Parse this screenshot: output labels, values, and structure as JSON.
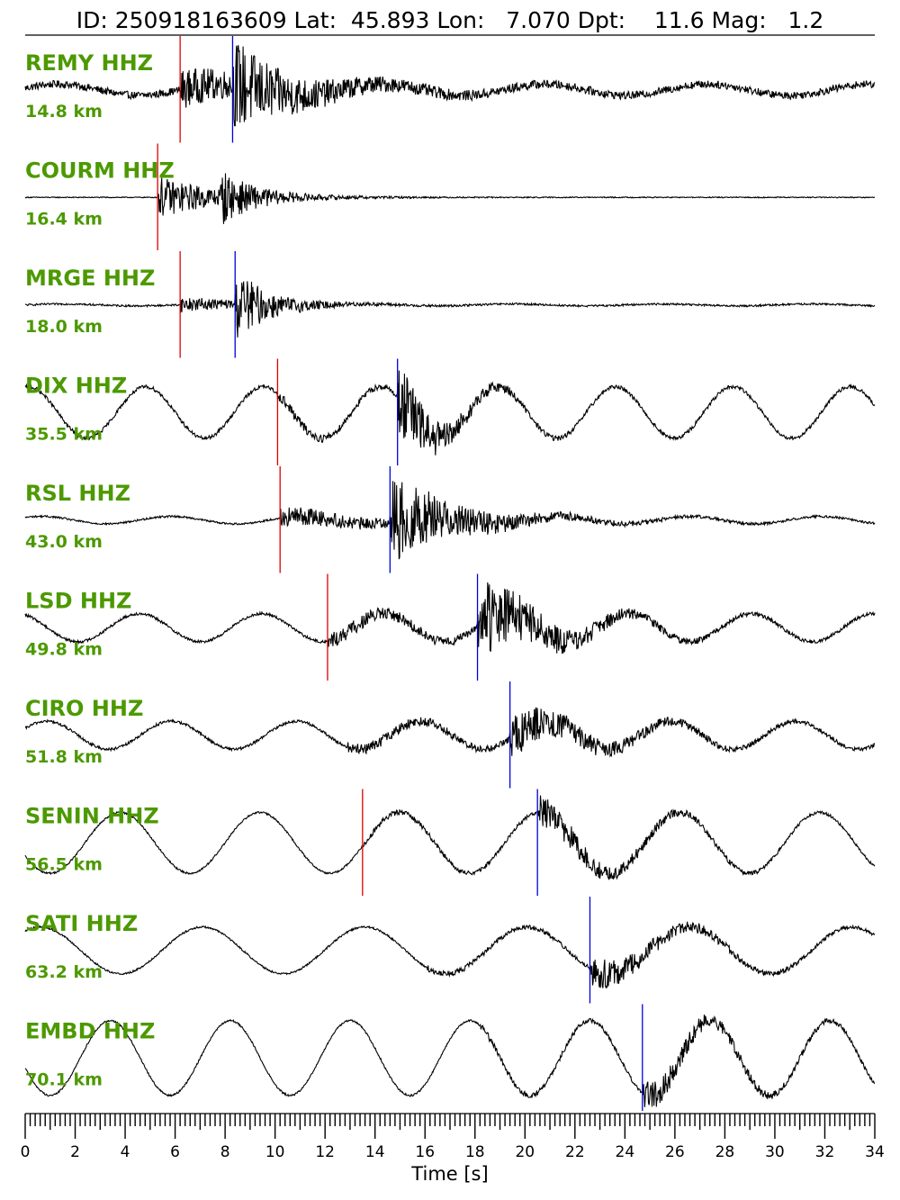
{
  "title": "ID: 250918163609 Lat:  45.893 Lon:   7.070 Dpt:    11.6 Mag:   1.2",
  "chart_data": {
    "type": "line",
    "title": "ID: 250918163609 Lat:  45.893 Lon:   7.070 Dpt:    11.6 Mag:   1.2",
    "xlabel": "Time [s]",
    "xlim": [
      0,
      34
    ],
    "xticks": [
      0,
      2,
      4,
      6,
      8,
      10,
      12,
      14,
      16,
      18,
      20,
      22,
      24,
      26,
      28,
      30,
      32,
      34
    ],
    "minor_tick_step": 0.2,
    "line_color": "#000000",
    "label_color": "#4c9900",
    "p_pick_color": "#dd0000",
    "s_pick_color": "#0000dd",
    "traces": [
      {
        "station": "REMY HHZ",
        "distance": "14.8 km",
        "p_pick": 6.2,
        "s_pick": 8.3,
        "noise_amp": 0.08,
        "p_amp": 0.35,
        "s_amp": 0.55,
        "peak_amp": 0.75,
        "coda_decay": 2.0,
        "long_period_amp": 0.12,
        "long_period_s": 6.5,
        "phase": 0.3
      },
      {
        "station": "COURM HHZ",
        "distance": "16.4 km",
        "p_pick": 5.3,
        "s_pick": null,
        "noise_amp": 0.01,
        "p_amp": 0.45,
        "s_amp": 0.3,
        "peak_amp": 0.45,
        "coda_decay": 1.2,
        "long_period_amp": 0.0,
        "long_period_s": 6.0,
        "phase": 0.0
      },
      {
        "station": "MRGE HHZ",
        "distance": "18.0 km",
        "p_pick": 6.2,
        "s_pick": 8.4,
        "noise_amp": 0.02,
        "p_amp": 0.15,
        "s_amp": 0.6,
        "peak_amp": 0.7,
        "coda_decay": 1.3,
        "long_period_amp": 0.02,
        "long_period_s": 6.0,
        "phase": 0.0
      },
      {
        "station": "DIX HHZ",
        "distance": "35.5 km",
        "p_pick": 10.1,
        "s_pick": 14.9,
        "noise_amp": 0.04,
        "p_amp": 0.08,
        "s_amp": 0.45,
        "peak_amp": 0.9,
        "coda_decay": 1.5,
        "long_period_amp": 0.55,
        "long_period_s": 4.7,
        "phase": 1.4
      },
      {
        "station": "RSL HHZ",
        "distance": "43.0 km",
        "p_pick": 10.2,
        "s_pick": 14.6,
        "noise_amp": 0.02,
        "p_amp": 0.2,
        "s_amp": 0.7,
        "peak_amp": 0.85,
        "coda_decay": 2.5,
        "long_period_amp": 0.08,
        "long_period_s": 5.2,
        "phase": 0.8
      },
      {
        "station": "LSD HHZ",
        "distance": "49.8 km",
        "p_pick": 12.1,
        "s_pick": 18.1,
        "noise_amp": 0.03,
        "p_amp": 0.15,
        "s_amp": 0.7,
        "peak_amp": 0.85,
        "coda_decay": 2.5,
        "long_period_amp": 0.3,
        "long_period_s": 4.9,
        "phase": 2.0
      },
      {
        "station": "CIRO HHZ",
        "distance": "51.8 km",
        "p_pick": null,
        "s_pick": 19.4,
        "noise_amp": 0.03,
        "p_amp": 0.1,
        "s_amp": 0.5,
        "peak_amp": 0.45,
        "coda_decay": 3.0,
        "long_period_amp": 0.3,
        "long_period_s": 5.0,
        "phase": 0.5
      },
      {
        "station": "SENIN HHZ",
        "distance": "56.5 km",
        "p_pick": 13.5,
        "s_pick": 20.5,
        "noise_amp": 0.02,
        "p_amp": 0.05,
        "s_amp": 0.2,
        "peak_amp": 0.35,
        "coda_decay": 3.0,
        "long_period_amp": 0.65,
        "long_period_s": 5.6,
        "phase": 3.6
      },
      {
        "station": "SATI HHZ",
        "distance": "63.2 km",
        "p_pick": null,
        "s_pick": 22.6,
        "noise_amp": 0.02,
        "p_amp": 0.05,
        "s_amp": 0.2,
        "peak_amp": 0.35,
        "coda_decay": 3.0,
        "long_period_amp": 0.5,
        "long_period_s": 6.5,
        "phase": 1.0
      },
      {
        "station": "EMBD HHZ",
        "distance": "70.1 km",
        "p_pick": null,
        "s_pick": 24.7,
        "noise_amp": 0.02,
        "p_amp": 0.05,
        "s_amp": 0.2,
        "peak_amp": 0.3,
        "coda_decay": 3.0,
        "long_period_amp": 0.8,
        "long_period_s": 4.8,
        "phase": 3.4
      }
    ]
  }
}
